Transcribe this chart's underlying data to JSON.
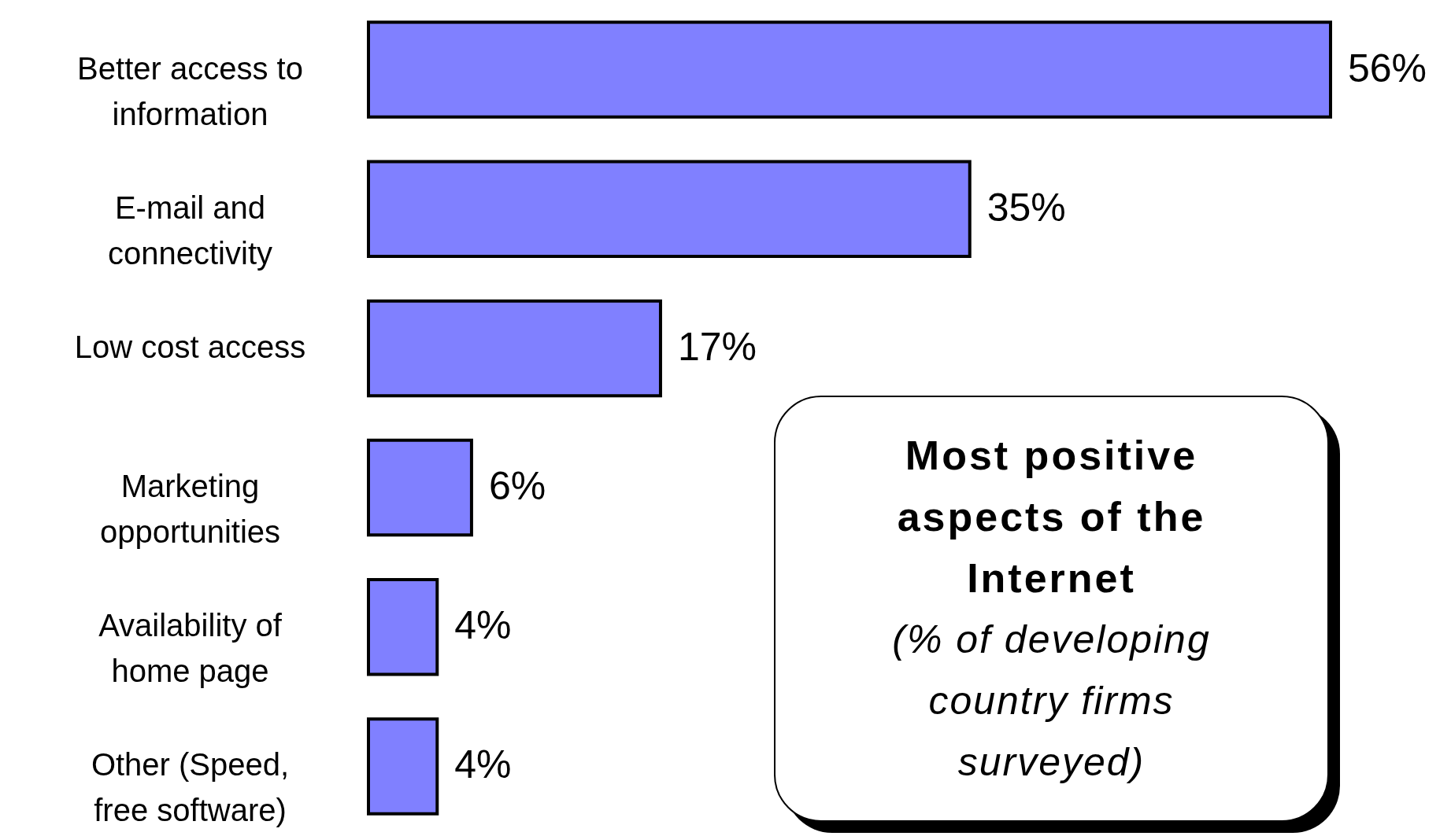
{
  "chart_data": {
    "type": "bar",
    "orientation": "horizontal",
    "title": "Most positive aspects of the Internet",
    "subtitle": "(% of developing country firms surveyed)",
    "categories": [
      "Better access to information",
      "E-mail and connectivity",
      "Low cost access",
      "Marketing opportunities",
      "Availability of home page",
      "Other (Speed, free software)"
    ],
    "values": [
      56,
      35,
      17,
      6,
      4,
      4
    ],
    "value_labels": [
      "56%",
      "35%",
      "17%",
      "6%",
      "4%",
      "4%"
    ],
    "color": "#8080ff"
  }
}
